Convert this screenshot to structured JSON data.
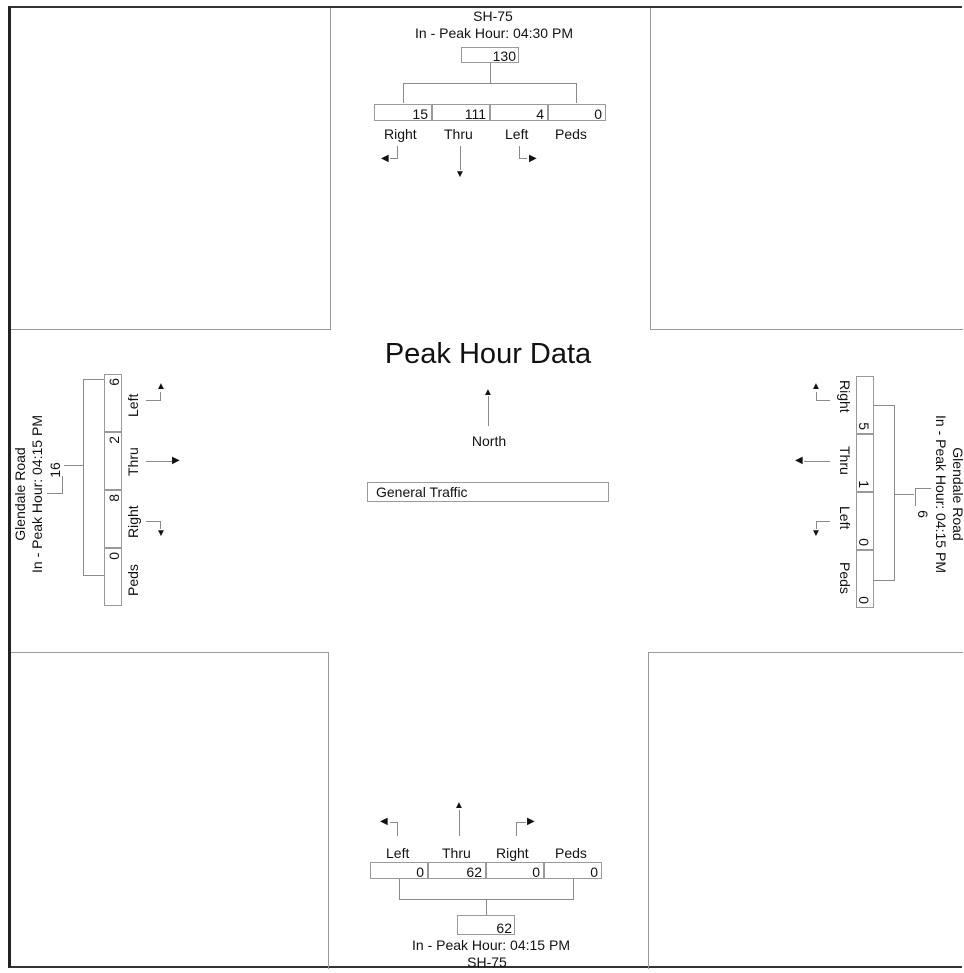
{
  "title": "Peak Hour Data",
  "north_label": "North",
  "traffic_type": "General Traffic",
  "approaches": {
    "north": {
      "road": "SH-75",
      "peak_hour": "In - Peak Hour: 04:30 PM",
      "total": "130",
      "movements": [
        {
          "label": "Right",
          "value": "15"
        },
        {
          "label": "Thru",
          "value": "111"
        },
        {
          "label": "Left",
          "value": "4"
        },
        {
          "label": "Peds",
          "value": "0"
        }
      ]
    },
    "south": {
      "road": "SH-75",
      "peak_hour": "In - Peak Hour: 04:15 PM",
      "total": "62",
      "movements": [
        {
          "label": "Left",
          "value": "0"
        },
        {
          "label": "Thru",
          "value": "62"
        },
        {
          "label": "Right",
          "value": "0"
        },
        {
          "label": "Peds",
          "value": "0"
        }
      ]
    },
    "west": {
      "road": "Glendale Road",
      "peak_hour": "In - Peak Hour: 04:15 PM",
      "total": "16",
      "movements": [
        {
          "label": "Left",
          "value": "6"
        },
        {
          "label": "Thru",
          "value": "2"
        },
        {
          "label": "Right",
          "value": "8"
        },
        {
          "label": "Peds",
          "value": "0"
        }
      ]
    },
    "east": {
      "road": "Glendale Road",
      "peak_hour": "In - Peak Hour: 04:15 PM",
      "total": "6",
      "movements": [
        {
          "label": "Right",
          "value": "5"
        },
        {
          "label": "Thru",
          "value": "1"
        },
        {
          "label": "Left",
          "value": "0"
        },
        {
          "label": "Peds",
          "value": "0"
        }
      ]
    }
  }
}
